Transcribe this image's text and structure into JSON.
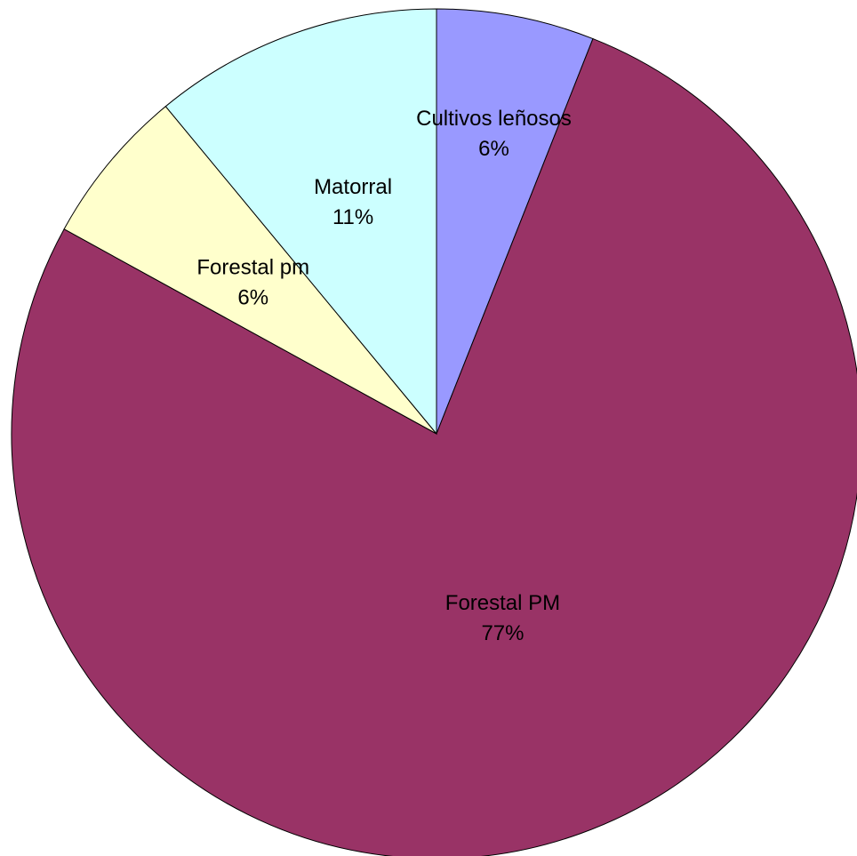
{
  "chart_data": {
    "type": "pie",
    "start_angle": "12 o'clock",
    "direction": "clockwise",
    "slices": [
      {
        "label": "Cultivos leñosos",
        "value": 6,
        "percent_label": "6%",
        "color": "#9999FF"
      },
      {
        "label": "Forestal PM",
        "value": 77,
        "percent_label": "77%",
        "color": "#993366"
      },
      {
        "label": "Forestal pm",
        "value": 6,
        "percent_label": "6%",
        "color": "#FFFFCC"
      },
      {
        "label": "Matorral",
        "value": 11,
        "percent_label": "11%",
        "color": "#CCFFFF"
      }
    ]
  }
}
